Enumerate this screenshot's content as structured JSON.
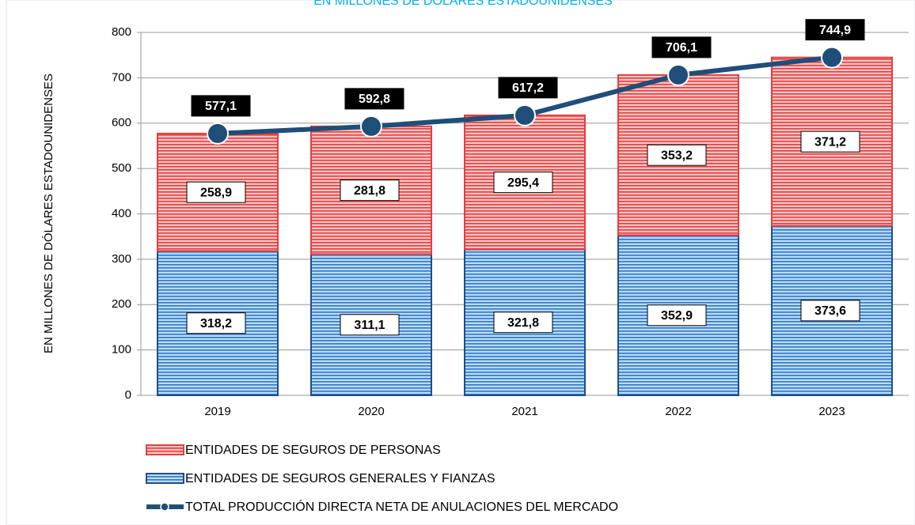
{
  "chart_data": {
    "type": "bar",
    "title": "EN MILLONES DE DÓLARES ESTADOUNIDENSES",
    "y_label": "EN MILLONES DE DÓLARES ESTADOUNIDENSES",
    "categories": [
      "2019",
      "2020",
      "2021",
      "2022",
      "2023"
    ],
    "stacked": true,
    "series": [
      {
        "name": "ENTIDADES DE SEGUROS GENERALES Y FIANZAS",
        "color": "#2e75c8",
        "type": "bar",
        "values": [
          318.2,
          311.1,
          321.8,
          352.9,
          373.6
        ],
        "value_labels": [
          "318,2",
          "311,1",
          "321,8",
          "352,9",
          "373,6"
        ]
      },
      {
        "name": "ENTIDADES DE SEGUROS DE PERSONAS",
        "color": "#e63c3c",
        "type": "bar",
        "values": [
          258.9,
          281.8,
          295.4,
          353.2,
          371.2
        ],
        "value_labels": [
          "258,9",
          "281,8",
          "295,4",
          "353,2",
          "371,2"
        ]
      },
      {
        "name": "TOTAL PRODUCCIÓN DIRECTA NETA DE ANULACIONES DEL MERCADO",
        "color": "#1f4e79",
        "type": "line",
        "values": [
          577.1,
          592.8,
          617.2,
          706.1,
          744.9
        ],
        "value_labels": [
          "577,1",
          "592,8",
          "617,2",
          "706,1",
          "744,9"
        ]
      }
    ],
    "ylim": [
      0,
      800
    ],
    "yticks": [
      0,
      100,
      200,
      300,
      400,
      500,
      600,
      700,
      800
    ],
    "grid": true
  }
}
